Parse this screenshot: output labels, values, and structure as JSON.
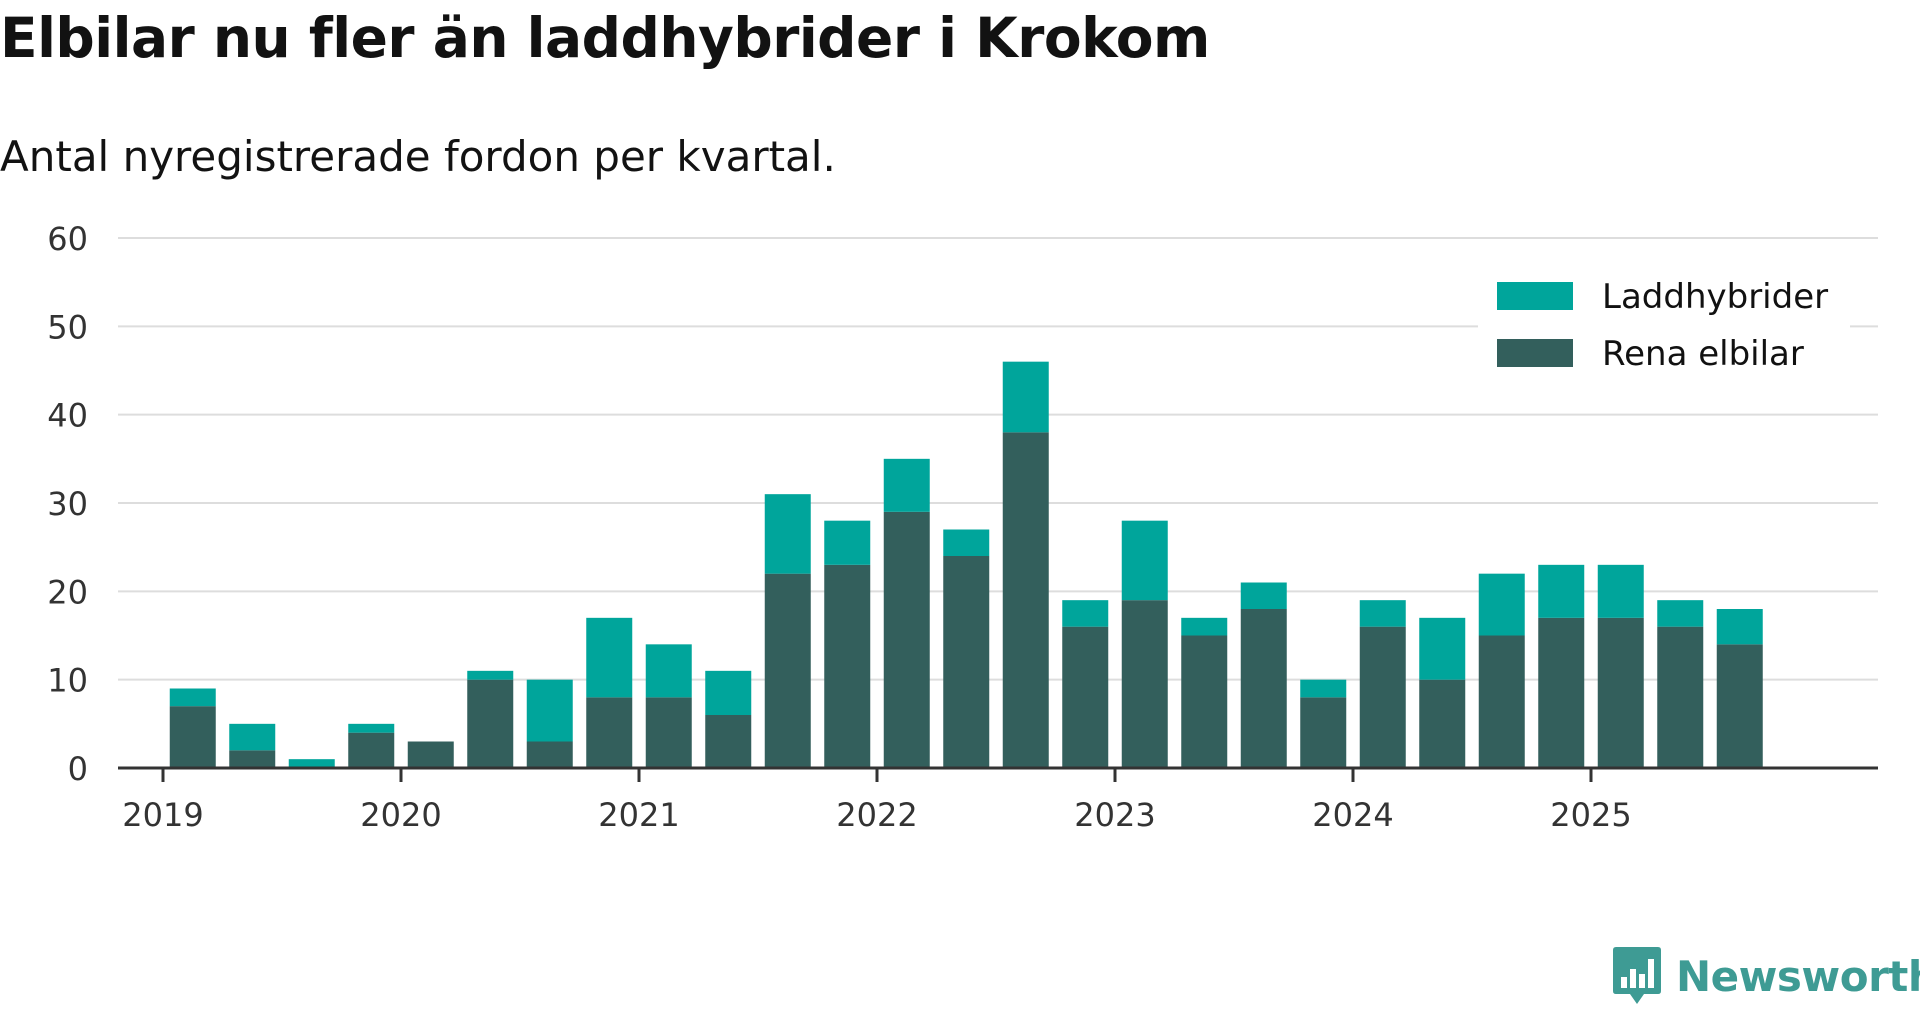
{
  "title": "Elbilar nu fler än laddhybrider i Krokom",
  "subtitle": "Antal nyregistrerade fordon per kvartal.",
  "brand": "Newsworthy",
  "colors": {
    "laddhybrider": "#00a59b",
    "rena_elbilar": "#335f5c",
    "grid": "#dddddd",
    "axis": "#333333",
    "brand": "#3e9b94"
  },
  "chart_data": {
    "type": "bar",
    "stacked": true,
    "categories": [
      "2019 Q1",
      "2019 Q2",
      "2019 Q3",
      "2019 Q4",
      "2020 Q1",
      "2020 Q2",
      "2020 Q3",
      "2020 Q4",
      "2021 Q1",
      "2021 Q2",
      "2021 Q3",
      "2021 Q4",
      "2022 Q1",
      "2022 Q2",
      "2022 Q3",
      "2022 Q4",
      "2023 Q1",
      "2023 Q2",
      "2023 Q3",
      "2023 Q4",
      "2024 Q1",
      "2024 Q2",
      "2024 Q3",
      "2024 Q4",
      "2025 Q1",
      "2025 Q2",
      "2025 Q3"
    ],
    "series": [
      {
        "name": "Rena elbilar",
        "color": "#335f5c",
        "values": [
          7,
          2,
          0,
          4,
          3,
          10,
          3,
          8,
          8,
          6,
          22,
          23,
          29,
          24,
          38,
          16,
          19,
          15,
          18,
          8,
          16,
          10,
          15,
          17,
          17,
          16,
          14
        ]
      },
      {
        "name": "Laddhybrider",
        "color": "#00a59b",
        "values": [
          2,
          3,
          1,
          1,
          0,
          1,
          7,
          9,
          6,
          5,
          9,
          5,
          6,
          3,
          8,
          3,
          9,
          2,
          3,
          2,
          3,
          7,
          7,
          6,
          6,
          3,
          4
        ]
      }
    ],
    "x_tick_labels": [
      "2019",
      "2020",
      "2021",
      "2022",
      "2023",
      "2024",
      "2025"
    ],
    "y_ticks": [
      0,
      10,
      20,
      30,
      40,
      50,
      60
    ],
    "ylim": [
      0,
      60
    ],
    "grid": true,
    "legend": {
      "placement": "top-right",
      "entries": [
        "Laddhybrider",
        "Rena elbilar"
      ]
    }
  }
}
